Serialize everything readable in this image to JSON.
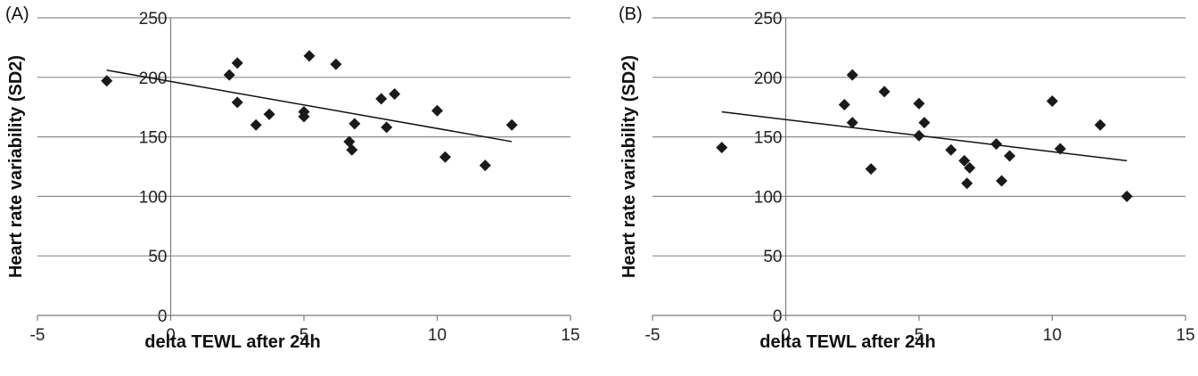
{
  "chart_data": [
    {
      "type": "scatter",
      "panel_label": "(A)",
      "title": "",
      "xlabel": "delta TEWL after 24h",
      "ylabel": "Heart rate variability (SD2)",
      "xlim": [
        -5,
        15
      ],
      "ylim": [
        0,
        250
      ],
      "xticks": [
        "-5",
        "0",
        "5",
        "10",
        "15"
      ],
      "yticks": [
        "0",
        "50",
        "100",
        "150",
        "200",
        "250"
      ],
      "grid": "horizontal",
      "marker_color": "#1a1a1a",
      "points": [
        {
          "x": -2.4,
          "y": 197
        },
        {
          "x": 2.2,
          "y": 202
        },
        {
          "x": 2.5,
          "y": 212
        },
        {
          "x": 2.5,
          "y": 179
        },
        {
          "x": 3.2,
          "y": 160
        },
        {
          "x": 3.7,
          "y": 169
        },
        {
          "x": 5.0,
          "y": 167
        },
        {
          "x": 5.0,
          "y": 171
        },
        {
          "x": 5.2,
          "y": 218
        },
        {
          "x": 6.2,
          "y": 211
        },
        {
          "x": 6.7,
          "y": 146
        },
        {
          "x": 6.8,
          "y": 139
        },
        {
          "x": 6.9,
          "y": 161
        },
        {
          "x": 7.9,
          "y": 182
        },
        {
          "x": 8.1,
          "y": 158
        },
        {
          "x": 8.4,
          "y": 186
        },
        {
          "x": 10.0,
          "y": 172
        },
        {
          "x": 10.3,
          "y": 133
        },
        {
          "x": 11.8,
          "y": 126
        },
        {
          "x": 12.8,
          "y": 160
        }
      ],
      "trendline": {
        "x": [
          -2.4,
          12.8
        ],
        "y": [
          206,
          146
        ]
      }
    },
    {
      "type": "scatter",
      "panel_label": "(B)",
      "title": "",
      "xlabel": "delta TEWL after 24h",
      "ylabel": "Heart rate variability (SD2)",
      "xlim": [
        -5,
        15
      ],
      "ylim": [
        0,
        250
      ],
      "xticks": [
        "-5",
        "0",
        "5",
        "10",
        "15"
      ],
      "yticks": [
        "0",
        "50",
        "100",
        "150",
        "200",
        "250"
      ],
      "grid": "horizontal",
      "marker_color": "#1a1a1a",
      "points": [
        {
          "x": -2.4,
          "y": 141
        },
        {
          "x": 2.2,
          "y": 177
        },
        {
          "x": 2.5,
          "y": 202
        },
        {
          "x": 2.5,
          "y": 162
        },
        {
          "x": 3.2,
          "y": 123
        },
        {
          "x": 3.7,
          "y": 188
        },
        {
          "x": 5.0,
          "y": 178
        },
        {
          "x": 5.0,
          "y": 151
        },
        {
          "x": 5.2,
          "y": 162
        },
        {
          "x": 6.2,
          "y": 139
        },
        {
          "x": 6.7,
          "y": 130
        },
        {
          "x": 6.8,
          "y": 111
        },
        {
          "x": 6.9,
          "y": 124
        },
        {
          "x": 7.9,
          "y": 144
        },
        {
          "x": 8.1,
          "y": 113
        },
        {
          "x": 8.4,
          "y": 134
        },
        {
          "x": 10.0,
          "y": 180
        },
        {
          "x": 10.3,
          "y": 140
        },
        {
          "x": 11.8,
          "y": 160
        },
        {
          "x": 12.8,
          "y": 100
        }
      ],
      "trendline": {
        "x": [
          -2.4,
          12.8
        ],
        "y": [
          171,
          130
        ]
      }
    }
  ]
}
